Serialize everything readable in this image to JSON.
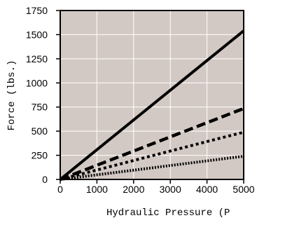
{
  "chart_data": {
    "type": "line",
    "title": "",
    "xlabel": "Hydraulic Pressure (P",
    "ylabel": "Force (lbs.)",
    "xlim": [
      0,
      5000
    ],
    "ylim": [
      0,
      1750
    ],
    "x_ticks": [
      "0",
      "1000",
      "2000",
      "3000",
      "4000",
      "5000"
    ],
    "y_ticks": [
      "0",
      "250",
      "500",
      "750",
      "1000",
      "1250",
      "1500",
      "1750"
    ],
    "grid": true,
    "legend": "none",
    "colors": {
      "plot_background": "#d3c9c4",
      "grid": "#ffffff",
      "frame": "#000000",
      "lines": "#000000"
    },
    "series": [
      {
        "line_style": "solid",
        "x": [
          0,
          5000
        ],
        "y": [
          0,
          1540
        ]
      },
      {
        "line_style": "dashed",
        "x": [
          0,
          5000
        ],
        "y": [
          0,
          735
        ]
      },
      {
        "line_style": "dotted",
        "x": [
          0,
          5000
        ],
        "y": [
          0,
          490
        ]
      },
      {
        "line_style": "fine-dotted",
        "x": [
          0,
          5000
        ],
        "y": [
          0,
          240
        ]
      }
    ]
  }
}
